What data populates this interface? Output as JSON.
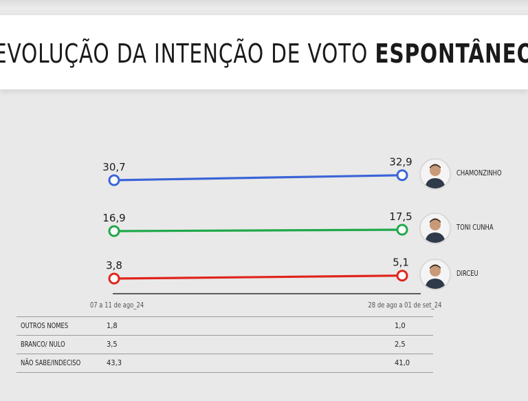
{
  "title": {
    "normal": "EVOLUÇÃO DA INTENÇÃO DE VOTO",
    "bold": "ESPONTÂNEO"
  },
  "periods": [
    "07 a 11 de ago_24",
    "28 de ago a 01 de set_24"
  ],
  "chart_data": {
    "type": "line",
    "x": [
      "07 a 11 de ago_24",
      "28 de ago a 01 de set_24"
    ],
    "series": [
      {
        "name": "CHAMONZINHO",
        "color": "#3a64d8",
        "values": [
          30.7,
          32.9
        ],
        "labels": [
          "30,7",
          "32,9"
        ]
      },
      {
        "name": "TONI CUNHA",
        "color": "#1fa84a",
        "values": [
          16.9,
          17.5
        ],
        "labels": [
          "16,9",
          "17,5"
        ]
      },
      {
        "name": "DIRCEU",
        "color": "#e0241b",
        "values": [
          3.8,
          5.1
        ],
        "labels": [
          "3,8",
          "5,1"
        ]
      }
    ]
  },
  "table": {
    "rows": [
      {
        "label": "OUTROS NOMES",
        "v1": "1,8",
        "v2": "1,0"
      },
      {
        "label": "BRANCO/ NULO",
        "v1": "3,5",
        "v2": "2,5"
      },
      {
        "label": "NÃO SABE/INDECISO",
        "v1": "43,3",
        "v2": "41,0"
      }
    ]
  },
  "avatar_icon": "person-avatar-icon"
}
